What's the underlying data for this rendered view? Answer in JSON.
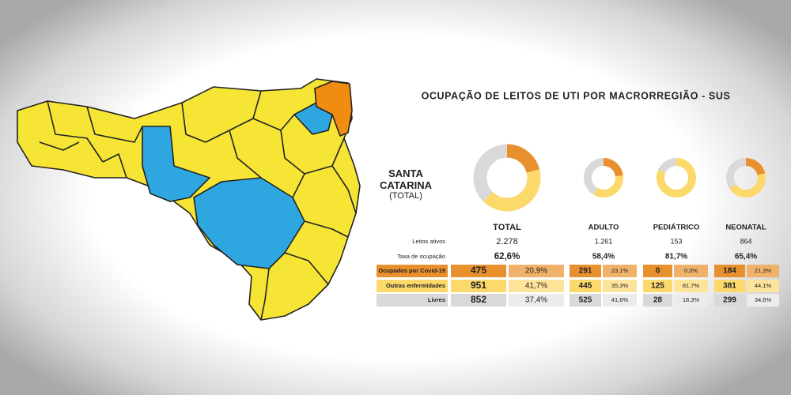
{
  "title": "OCUPAÇÃO DE LEITOS DE UTI POR MACRORREGIÃO - SUS",
  "region": {
    "name": "SANTA CATARINA",
    "subtitle": "(TOTAL)"
  },
  "row_labels": [
    "Leitos ativos",
    "Taxa de ocupação",
    "Ocupados por Covid-19",
    "Outras enfermidades",
    "Livres"
  ],
  "columns": [
    {
      "name": "TOTAL",
      "leitos_ativos": "2.278",
      "taxa": "62,6%",
      "covid": {
        "count": "475",
        "pct": {
          "value": 20.9,
          "label": "20,9%"
        }
      },
      "outras": {
        "count": "951",
        "pct": {
          "value": 41.7,
          "label": "41,7%"
        }
      },
      "livres": {
        "count": "852",
        "pct": {
          "value": 37.4,
          "label": "37,4%"
        }
      }
    },
    {
      "name": "ADULTO",
      "leitos_ativos": "1.261",
      "taxa": "58,4%",
      "covid": {
        "count": "291",
        "pct": {
          "value": 23.1,
          "label": "23,1%"
        }
      },
      "outras": {
        "count": "445",
        "pct": {
          "value": 35.3,
          "label": "35,3%"
        }
      },
      "livres": {
        "count": "525",
        "pct": {
          "value": 41.6,
          "label": "41,6%"
        }
      }
    },
    {
      "name": "PEDIÁTRICO",
      "leitos_ativos": "153",
      "taxa": "81,7%",
      "covid": {
        "count": "0",
        "pct": {
          "value": 0.0,
          "label": "0,0%"
        }
      },
      "outras": {
        "count": "125",
        "pct": {
          "value": 81.7,
          "label": "81,7%"
        }
      },
      "livres": {
        "count": "28",
        "pct": {
          "value": 18.3,
          "label": "18,3%"
        }
      }
    },
    {
      "name": "NEONATAL",
      "leitos_ativos": "864",
      "taxa": "65,4%",
      "covid": {
        "count": "184",
        "pct": {
          "value": 21.3,
          "label": "21,3%"
        }
      },
      "outras": {
        "count": "381",
        "pct": {
          "value": 44.1,
          "label": "44,1%"
        }
      },
      "livres": {
        "count": "299",
        "pct": {
          "value": 34.6,
          "label": "34,6%"
        }
      }
    }
  ]
}
